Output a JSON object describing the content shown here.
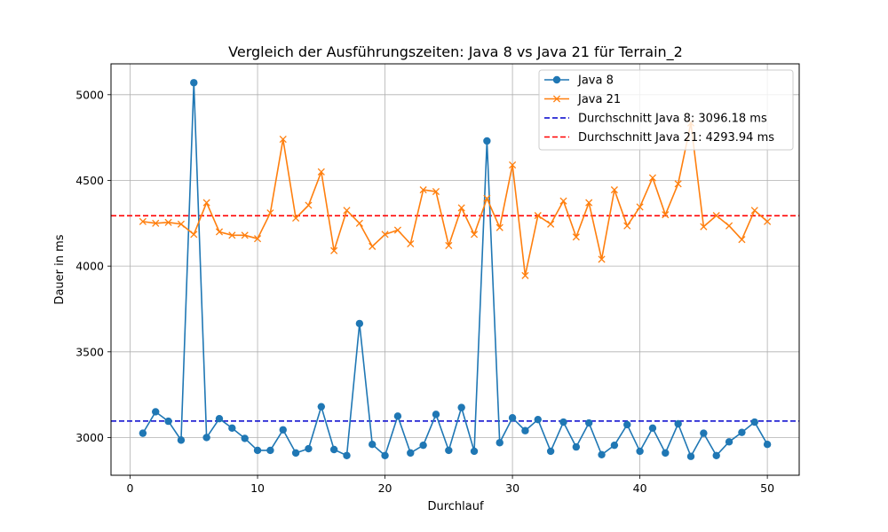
{
  "chart_data": {
    "type": "line",
    "title": "Vergleich der Ausführungszeiten: Java 8 vs Java 21 für Terrain_2",
    "xlabel": "Durchlauf",
    "ylabel": "Dauer in ms",
    "xlim": [
      -1.5,
      52.5
    ],
    "ylim": [
      2780,
      5180
    ],
    "xticks": [
      0,
      10,
      20,
      30,
      40,
      50
    ],
    "yticks": [
      3000,
      3500,
      4000,
      4500,
      5000
    ],
    "grid": true,
    "legend_position": "upper right",
    "x": [
      1,
      2,
      3,
      4,
      5,
      6,
      7,
      8,
      9,
      10,
      11,
      12,
      13,
      14,
      15,
      16,
      17,
      18,
      19,
      20,
      21,
      22,
      23,
      24,
      25,
      26,
      27,
      28,
      29,
      30,
      31,
      32,
      33,
      34,
      35,
      36,
      37,
      38,
      39,
      40,
      41,
      42,
      43,
      44,
      45,
      46,
      47,
      48,
      49,
      50
    ],
    "series": [
      {
        "name": "Java 8",
        "color": "#1f77b4",
        "marker": "circle",
        "values": [
          3025,
          3150,
          3095,
          2985,
          5070,
          3000,
          3110,
          3055,
          2995,
          2925,
          2925,
          3045,
          2910,
          2935,
          3180,
          2930,
          2895,
          3665,
          2960,
          2895,
          3125,
          2910,
          2955,
          3135,
          2925,
          3175,
          2920,
          4730,
          2970,
          3115,
          3040,
          3105,
          2920,
          3090,
          2945,
          3085,
          2900,
          2955,
          3075,
          2920,
          3055,
          2910,
          3080,
          2890,
          3025,
          2895,
          2975,
          3030,
          3090,
          2960
        ]
      },
      {
        "name": "Java 21",
        "color": "#ff7f0e",
        "marker": "x",
        "values": [
          4260,
          4250,
          4255,
          4245,
          4185,
          4370,
          4200,
          4180,
          4180,
          4160,
          4310,
          4740,
          4280,
          4355,
          4550,
          4090,
          4325,
          4250,
          4115,
          4185,
          4210,
          4130,
          4445,
          4435,
          4120,
          4340,
          4185,
          4395,
          4225,
          4590,
          3945,
          4295,
          4245,
          4380,
          4170,
          4370,
          4040,
          4445,
          4235,
          4345,
          4515,
          4300,
          4480,
          4835,
          4230,
          4295,
          4235,
          4155,
          4325,
          4260
        ]
      }
    ],
    "reference_lines": [
      {
        "name": "Durchschnitt Java 8: 3096.18 ms",
        "value": 3096.18,
        "color": "#0000cc",
        "style": "dashed"
      },
      {
        "name": "Durchschnitt Java 21: 4293.94 ms",
        "value": 4293.94,
        "color": "#ff0000",
        "style": "dashed"
      }
    ]
  }
}
